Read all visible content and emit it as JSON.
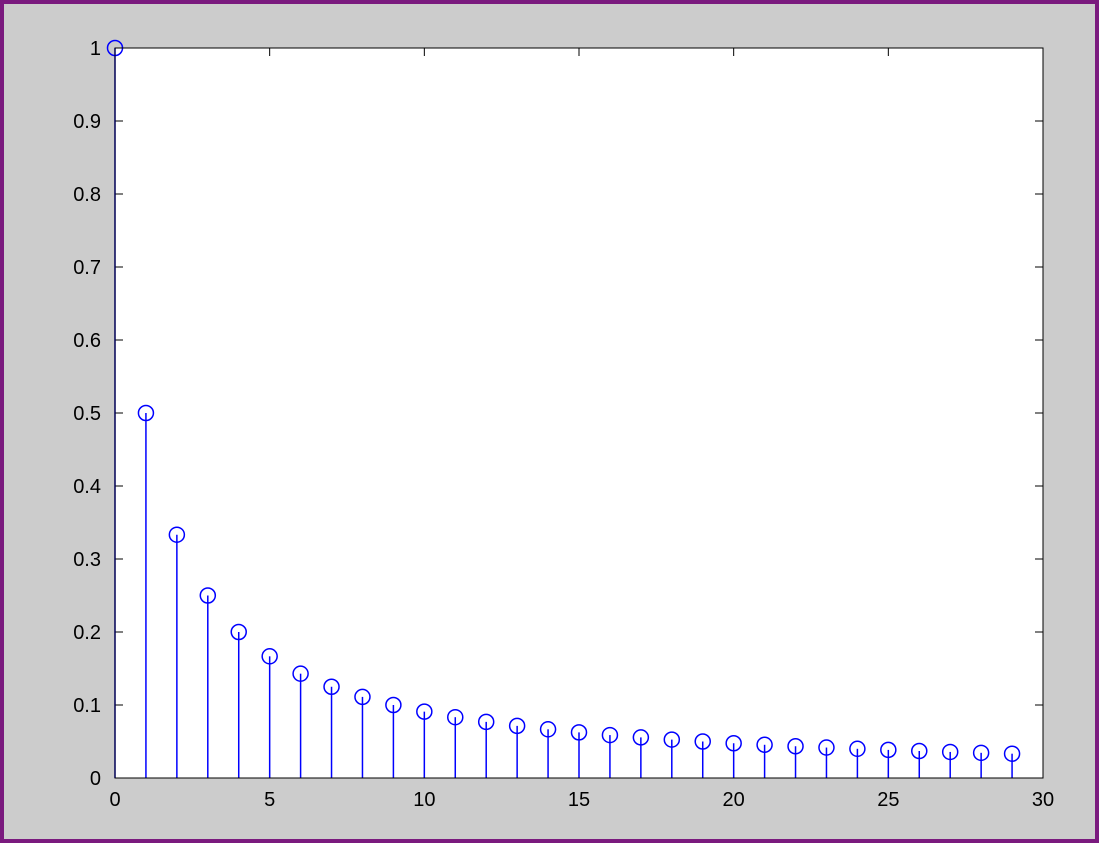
{
  "figure": {
    "background": "#cccccc",
    "frame_color": "#7a1a7e",
    "axes_background": "#ffffff",
    "stem_color": "#0000ff"
  },
  "chart_data": {
    "type": "stem",
    "title": "",
    "xlabel": "",
    "ylabel": "",
    "x": [
      0,
      1,
      2,
      3,
      4,
      5,
      6,
      7,
      8,
      9,
      10,
      11,
      12,
      13,
      14,
      15,
      16,
      17,
      18,
      19,
      20,
      21,
      22,
      23,
      24,
      25,
      26,
      27,
      28,
      29
    ],
    "values": [
      1,
      0.5,
      0.3333,
      0.25,
      0.2,
      0.1667,
      0.1429,
      0.125,
      0.1111,
      0.1,
      0.0909,
      0.0833,
      0.0769,
      0.0714,
      0.0667,
      0.0625,
      0.0588,
      0.0556,
      0.0526,
      0.05,
      0.0476,
      0.0455,
      0.0435,
      0.0417,
      0.04,
      0.0385,
      0.037,
      0.0357,
      0.0345,
      0.0333
    ],
    "xlim": [
      0,
      30
    ],
    "ylim": [
      0,
      1
    ],
    "xticks": [
      "0",
      "5",
      "10",
      "15",
      "20",
      "25",
      "30"
    ],
    "yticks": [
      "0",
      "0.1",
      "0.2",
      "0.3",
      "0.4",
      "0.5",
      "0.6",
      "0.7",
      "0.8",
      "0.9",
      "1"
    ],
    "marker": "open-circle",
    "grid": false,
    "legend": false
  }
}
